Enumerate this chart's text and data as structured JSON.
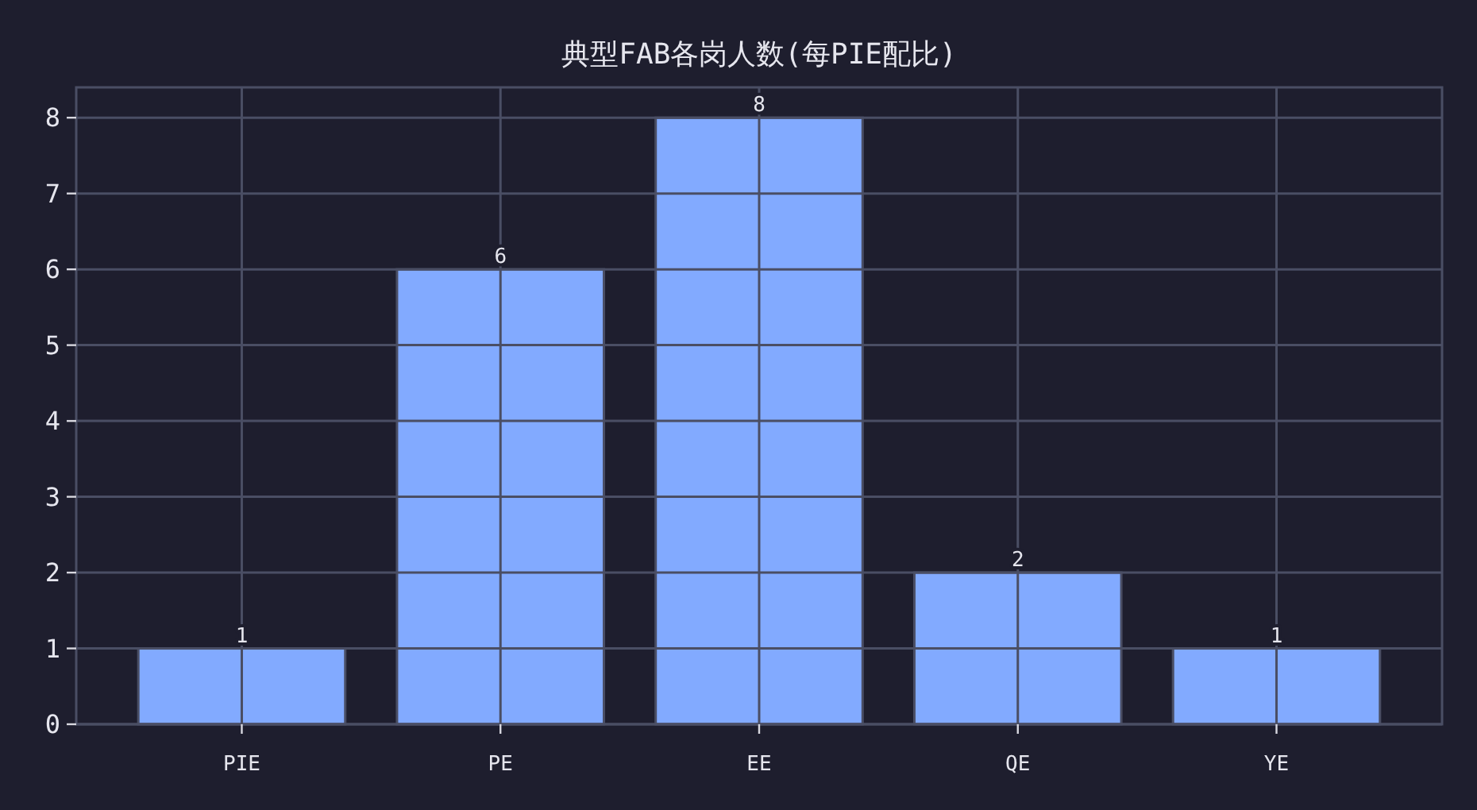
{
  "chart_data": {
    "type": "bar",
    "title": "典型FAB各岗人数(每PIE配比)",
    "categories": [
      "PIE",
      "PE",
      "EE",
      "QE",
      "YE"
    ],
    "values": [
      1,
      6,
      8,
      2,
      1
    ],
    "color": "#82aaff",
    "ylim": [
      0,
      8.4
    ],
    "yticks": [
      0,
      1,
      2,
      3,
      4,
      5,
      6,
      7,
      8
    ],
    "grid": true,
    "data_labels": true
  }
}
